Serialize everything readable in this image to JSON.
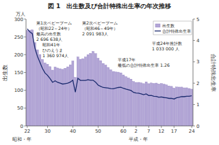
{
  "chart_data": {
    "type": "bar",
    "title": "図 1　出生数及び合計特殊出生率の年次推移",
    "y_unit": "万人",
    "y_label": "出生数",
    "y2_label": "合計特殊出生率",
    "x_labels": [
      "昭和・年",
      "平成・年"
    ],
    "categories": [
      "22",
      null,
      null,
      null,
      null,
      null,
      null,
      null,
      "30",
      null,
      null,
      null,
      null,
      null,
      null,
      null,
      null,
      null,
      "40",
      null,
      null,
      null,
      null,
      null,
      null,
      null,
      null,
      null,
      "50",
      null,
      null,
      null,
      null,
      null,
      null,
      null,
      null,
      null,
      "60",
      null,
      null,
      null,
      null,
      "2",
      null,
      null,
      null,
      null,
      "7",
      null,
      null,
      null,
      null,
      "12",
      null,
      null,
      null,
      null,
      "17",
      null,
      null,
      null,
      null,
      null,
      null,
      "24"
    ],
    "series": [
      {
        "name": "出生数",
        "type": "bar",
        "color": "#b3a6d6",
        "values": [
          267.9,
          268.2,
          269.7,
          233.8,
          213.8,
          200.5,
          186.8,
          177.0,
          173.1,
          166.5,
          156.7,
          165.3,
          162.6,
          160.6,
          158.9,
          161.9,
          166.0,
          171.7,
          182.4,
          136.1,
          193.6,
          187.2,
          188.9,
          193.4,
          200.1,
          203.9,
          209.2,
          203.0,
          190.1,
          183.3,
          175.5,
          170.9,
          164.3,
          157.7,
          152.9,
          151.5,
          150.9,
          149.0,
          143.2,
          138.3,
          134.7,
          131.4,
          124.7,
          122.2,
          122.3,
          120.9,
          118.8,
          123.8,
          118.7,
          120.7,
          119.2,
          120.3,
          117.8,
          119.1,
          117.1,
          115.4,
          112.4,
          111.1,
          106.3,
          109.3,
          109.0,
          109.1,
          107.0,
          107.1,
          105.1,
          103.3
        ]
      },
      {
        "name": "合計特殊出生率",
        "type": "line",
        "color": "#1b2a6e",
        "axis": "y2",
        "values": [
          4.54,
          4.4,
          4.32,
          3.65,
          3.26,
          2.98,
          2.69,
          2.48,
          2.37,
          2.22,
          2.04,
          2.11,
          2.04,
          2.0,
          1.96,
          1.98,
          2.0,
          2.05,
          2.14,
          1.58,
          2.23,
          2.13,
          2.13,
          2.13,
          2.16,
          2.14,
          2.14,
          2.05,
          1.91,
          1.85,
          1.8,
          1.79,
          1.77,
          1.75,
          1.74,
          1.77,
          1.8,
          1.81,
          1.76,
          1.72,
          1.69,
          1.66,
          1.57,
          1.54,
          1.53,
          1.5,
          1.46,
          1.5,
          1.42,
          1.43,
          1.39,
          1.38,
          1.34,
          1.36,
          1.33,
          1.32,
          1.29,
          1.29,
          1.26,
          1.32,
          1.34,
          1.37,
          1.37,
          1.39,
          1.39,
          1.41
        ]
      }
    ],
    "ylim": [
      0,
      300
    ],
    "yticks": [
      0,
      50,
      100,
      150,
      200,
      250,
      300
    ],
    "y2lim": [
      0,
      5
    ],
    "y2ticks": [
      0,
      1,
      2,
      3,
      4,
      5
    ],
    "grid": false,
    "legend": "upper right",
    "annotations": [
      {
        "lines": [
          "第1次ベビーブーム",
          "（昭和22～24年）",
          "最高の出生数",
          "2 696 638人"
        ]
      },
      {
        "lines": [
          "昭和41年",
          "ひのえうま",
          "1 360 974人"
        ]
      },
      {
        "lines": [
          "第2次ベビーブーム",
          "（昭和46～49年）",
          "2 091 983人"
        ]
      },
      {
        "lines": [
          "平成17年",
          "最低の合計特殊出生率 1.26"
        ]
      },
      {
        "lines": [
          "平成24年推計数",
          "1 033 000 人"
        ]
      }
    ]
  }
}
